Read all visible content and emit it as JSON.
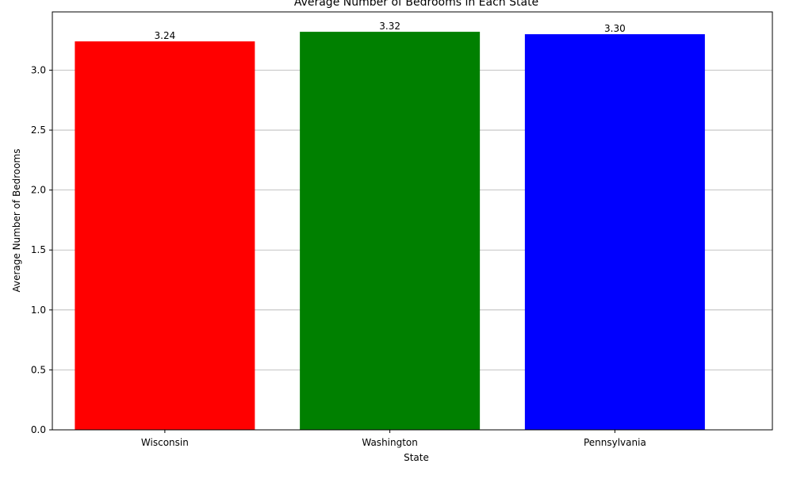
{
  "chart_data": {
    "type": "bar",
    "title": "Average Number of Bedrooms in Each State",
    "xlabel": "State",
    "ylabel": "Average Number of Bedrooms",
    "categories": [
      "Wisconsin",
      "Washington",
      "Pennsylvania"
    ],
    "values": [
      3.24,
      3.32,
      3.3
    ],
    "value_labels": [
      "3.24",
      "3.32",
      "3.30"
    ],
    "colors": [
      "#ff0000",
      "#008000",
      "#0000ff"
    ],
    "ylim": [
      0,
      3.486
    ],
    "yticks": [
      0.0,
      0.5,
      1.0,
      1.5,
      2.0,
      2.5,
      3.0
    ],
    "ytick_labels": [
      "0.0",
      "0.5",
      "1.0",
      "1.5",
      "2.0",
      "2.5",
      "3.0"
    ],
    "grid": "y",
    "legend": "none"
  }
}
